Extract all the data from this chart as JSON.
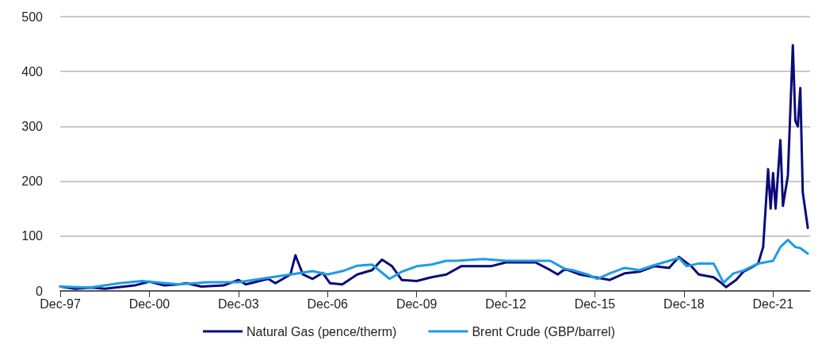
{
  "chart_data": {
    "type": "line",
    "xlim": [
      "1997-12",
      "2023-03"
    ],
    "ylim": [
      0,
      500
    ],
    "yticks": [
      0,
      100,
      200,
      300,
      400,
      500
    ],
    "xticks": [
      {
        "value": "1997-12",
        "label": "Dec-97"
      },
      {
        "value": "2000-12",
        "label": "Dec-00"
      },
      {
        "value": "2003-12",
        "label": "Dec-03"
      },
      {
        "value": "2006-12",
        "label": "Dec-06"
      },
      {
        "value": "2009-12",
        "label": "Dec-09"
      },
      {
        "value": "2012-12",
        "label": "Dec-12"
      },
      {
        "value": "2015-12",
        "label": "Dec-15"
      },
      {
        "value": "2018-12",
        "label": "Dec-18"
      },
      {
        "value": "2021-12",
        "label": "Dec-21"
      }
    ],
    "grid": "y",
    "legend": "bottom",
    "marker": "none",
    "line_style": "solid",
    "series": [
      {
        "name": "Natural Gas (pence/therm)",
        "color": "#0b0b7a",
        "x": [
          "1997-12",
          "1998-06",
          "1999-01",
          "1999-06",
          "2000-06",
          "2000-12",
          "2001-06",
          "2001-12",
          "2002-03",
          "2002-09",
          "2003-06",
          "2003-12",
          "2004-03",
          "2004-12",
          "2005-03",
          "2005-09",
          "2005-11",
          "2006-02",
          "2006-06",
          "2006-10",
          "2007-01",
          "2007-06",
          "2007-12",
          "2008-06",
          "2008-10",
          "2009-02",
          "2009-06",
          "2009-12",
          "2010-06",
          "2010-12",
          "2011-06",
          "2011-12",
          "2012-06",
          "2012-12",
          "2013-06",
          "2013-12",
          "2014-06",
          "2014-09",
          "2014-12",
          "2015-06",
          "2015-12",
          "2016-06",
          "2016-12",
          "2017-06",
          "2017-12",
          "2018-06",
          "2018-10",
          "2019-03",
          "2019-06",
          "2019-12",
          "2020-03",
          "2020-05",
          "2020-09",
          "2020-12",
          "2021-03",
          "2021-06",
          "2021-08",
          "2021-10",
          "2021-11",
          "2021-12",
          "2022-01",
          "2022-03",
          "2022-04",
          "2022-06",
          "2022-08",
          "2022-09",
          "2022-10",
          "2022-11",
          "2022-12",
          "2023-02"
        ],
        "values": [
          8,
          4,
          6,
          4,
          10,
          17,
          10,
          12,
          14,
          8,
          10,
          20,
          12,
          22,
          14,
          30,
          65,
          30,
          22,
          33,
          14,
          12,
          30,
          38,
          57,
          45,
          20,
          18,
          25,
          30,
          45,
          45,
          45,
          52,
          52,
          52,
          38,
          30,
          40,
          30,
          25,
          20,
          32,
          35,
          45,
          42,
          62,
          45,
          30,
          25,
          15,
          7,
          20,
          35,
          42,
          50,
          80,
          222,
          150,
          215,
          150,
          275,
          155,
          210,
          448,
          310,
          300,
          370,
          180,
          115
        ]
      },
      {
        "name": "Brent Crude (GBP/barrel)",
        "color": "#1e9be8",
        "x": [
          "1997-12",
          "1998-12",
          "1999-12",
          "2000-09",
          "2001-12",
          "2002-12",
          "2003-12",
          "2004-09",
          "2005-09",
          "2006-06",
          "2006-12",
          "2007-06",
          "2007-12",
          "2008-06",
          "2009-01",
          "2009-06",
          "2009-12",
          "2010-06",
          "2010-12",
          "2011-04",
          "2012-03",
          "2012-12",
          "2013-06",
          "2014-06",
          "2014-12",
          "2015-03",
          "2015-09",
          "2016-01",
          "2016-06",
          "2016-12",
          "2017-06",
          "2017-12",
          "2018-06",
          "2018-10",
          "2019-01",
          "2019-06",
          "2019-12",
          "2020-04",
          "2020-08",
          "2020-12",
          "2021-06",
          "2021-12",
          "2022-03",
          "2022-06",
          "2022-09",
          "2022-11",
          "2023-02"
        ],
        "values": [
          8,
          6,
          14,
          18,
          12,
          16,
          16,
          22,
          30,
          36,
          30,
          36,
          46,
          48,
          22,
          35,
          45,
          48,
          55,
          55,
          58,
          55,
          55,
          55,
          40,
          38,
          30,
          22,
          32,
          42,
          38,
          47,
          55,
          60,
          45,
          50,
          50,
          15,
          32,
          37,
          50,
          55,
          80,
          93,
          80,
          78,
          68
        ]
      }
    ]
  }
}
